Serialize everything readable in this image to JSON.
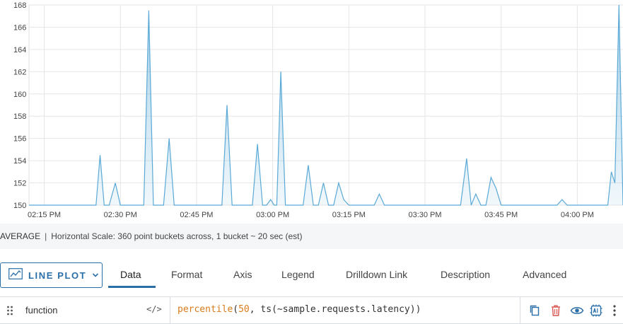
{
  "chart_data": {
    "type": "area",
    "y_ticks": [
      "168",
      "166",
      "164",
      "162",
      "160",
      "158",
      "156",
      "154",
      "152",
      "150"
    ],
    "ylim": [
      150,
      168
    ],
    "x_ticks": [
      "02:15 PM",
      "02:30 PM",
      "02:45 PM",
      "03:00 PM",
      "03:15 PM",
      "03:30 PM",
      "03:45 PM",
      "04:00 PM"
    ],
    "x_tick_minutes": [
      0,
      15,
      30,
      45,
      60,
      75,
      90,
      105
    ],
    "xlim_minutes": [
      -3,
      114
    ],
    "grid": true,
    "color": "#5aa9d6",
    "series": [
      {
        "points": [
          [
            -3,
            150
          ],
          [
            10.2,
            150
          ],
          [
            11.0,
            154.5
          ],
          [
            11.8,
            150
          ],
          [
            12.8,
            150
          ],
          [
            14.0,
            152
          ],
          [
            15.0,
            150
          ],
          [
            19.6,
            150
          ],
          [
            20.6,
            167.5
          ],
          [
            21.5,
            150
          ],
          [
            23.5,
            150
          ],
          [
            24.6,
            156
          ],
          [
            25.6,
            150
          ],
          [
            35,
            150
          ],
          [
            36,
            159
          ],
          [
            37,
            150
          ],
          [
            41,
            150
          ],
          [
            42,
            155.5
          ],
          [
            43,
            150
          ],
          [
            43.8,
            150
          ],
          [
            44.6,
            150.5
          ],
          [
            45.3,
            150
          ],
          [
            45.8,
            150
          ],
          [
            46.6,
            162
          ],
          [
            47.5,
            150
          ],
          [
            51,
            150
          ],
          [
            52,
            153.6
          ],
          [
            53,
            150
          ],
          [
            54,
            150
          ],
          [
            55,
            152
          ],
          [
            56,
            150
          ],
          [
            57,
            150
          ],
          [
            58,
            152
          ],
          [
            59,
            150.5
          ],
          [
            60,
            150
          ],
          [
            65,
            150
          ],
          [
            66,
            151
          ],
          [
            67,
            150
          ],
          [
            82,
            150
          ],
          [
            83.2,
            154.2
          ],
          [
            84.1,
            150
          ],
          [
            85,
            151
          ],
          [
            86,
            150
          ],
          [
            87,
            150
          ],
          [
            88,
            152.5
          ],
          [
            89,
            151.5
          ],
          [
            90,
            150
          ],
          [
            101,
            150
          ],
          [
            102,
            150.5
          ],
          [
            103,
            150
          ],
          [
            111,
            150
          ],
          [
            111.7,
            153
          ],
          [
            112.4,
            152
          ],
          [
            113.2,
            168
          ],
          [
            114,
            150
          ]
        ]
      }
    ]
  },
  "info_bar": {
    "aggregation": "AVERAGE",
    "separator": "|",
    "scale_text": "Horizontal Scale: 360 point buckets across, 1 bucket ~ 20 sec (est)"
  },
  "plot_type": {
    "label": "LINE PLOT",
    "icon": "line-chart-icon"
  },
  "tabs": [
    {
      "label": "Data",
      "active": true
    },
    {
      "label": "Format",
      "active": false
    },
    {
      "label": "Axis",
      "active": false
    },
    {
      "label": "Legend",
      "active": false
    },
    {
      "label": "Drilldown Link",
      "active": false
    },
    {
      "label": "Description",
      "active": false
    },
    {
      "label": "Advanced",
      "active": false
    }
  ],
  "query": {
    "label": "function",
    "toggle": "</>",
    "fn_name": "percentile",
    "open_paren": "(",
    "arg_number": "50",
    "rest": ", ts(~sample.requests.latency))"
  },
  "colors": {
    "accent": "#2a6fa8",
    "series": "#5aa9d6",
    "delete": "#d9534f"
  }
}
